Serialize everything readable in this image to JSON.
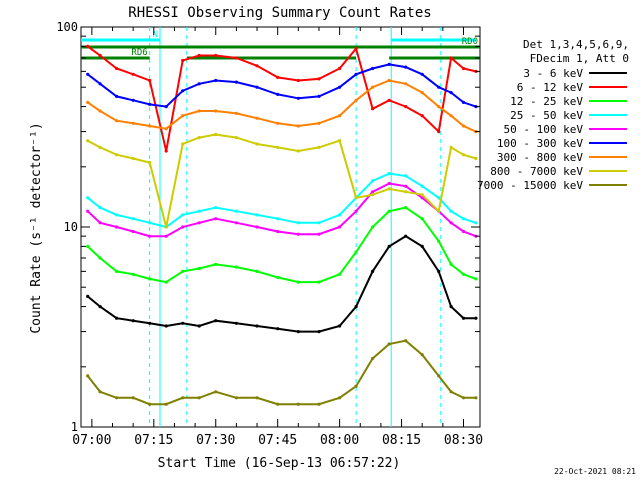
{
  "chart_data": {
    "type": "line",
    "title": "RHESSI Observing Summary Count Rates",
    "xlabel": "Start Time (16-Sep-13 06:57:22)",
    "ylabel": "Count Rate (s⁻¹ detector⁻¹)",
    "yscale": "log",
    "ylim": [
      1,
      100
    ],
    "xlim": [
      "06:57:22",
      "08:34:00"
    ],
    "x_ticks": [
      "07:00",
      "07:15",
      "07:30",
      "07:45",
      "08:00",
      "08:15",
      "08:30"
    ],
    "y_ticks": [
      "1",
      "10",
      "100"
    ],
    "legend_header": [
      "Det 1,3,4,5,6,9,",
      "FDecim 1, Att 0"
    ],
    "legend_position": "right",
    "footer_date": "22-Oct-2021 08:21",
    "flags": [
      {
        "label": "N",
        "color": "#00ffff",
        "segments": [
          [
            "06:57:22",
            "07:16:30"
          ],
          [
            "08:12:30",
            "08:33:00"
          ]
        ]
      },
      {
        "label": "RD0",
        "color": "#008000",
        "segments": [
          [
            "06:57:22",
            "08:34:00"
          ]
        ]
      },
      {
        "label": "RD6",
        "color": "#008000",
        "segments": [
          [
            "06:57:22",
            "07:14:00"
          ],
          [
            "07:23:00",
            "08:04:00"
          ],
          [
            "08:12:00",
            "08:34:00"
          ]
        ]
      }
    ],
    "night_boundaries": [
      "07:16:30",
      "08:12:30"
    ],
    "saa_boundaries": [
      "07:14:00",
      "07:23:00",
      "08:04:00",
      "08:24:30"
    ],
    "x": [
      "06:59",
      "07:02",
      "07:06",
      "07:10",
      "07:14",
      "07:18",
      "07:22",
      "07:26",
      "07:30",
      "07:35",
      "07:40",
      "07:45",
      "07:50",
      "07:55",
      "08:00",
      "08:04",
      "08:08",
      "08:12",
      "08:16",
      "08:20",
      "08:24",
      "08:27",
      "08:30",
      "08:33"
    ],
    "series": [
      {
        "name": "3 - 6 keV",
        "color": "#000000",
        "values": [
          4.5,
          4.0,
          3.5,
          3.4,
          3.3,
          3.2,
          3.3,
          3.2,
          3.4,
          3.3,
          3.2,
          3.1,
          3.0,
          3.0,
          3.2,
          4.0,
          6.0,
          8.0,
          9.0,
          8.0,
          6.0,
          4.0,
          3.5,
          3.5
        ]
      },
      {
        "name": "6 - 12 keV",
        "color": "#ff0000",
        "values": [
          80,
          72,
          62,
          58,
          54,
          24,
          68,
          72,
          72,
          70,
          64,
          56,
          54,
          55,
          62,
          78,
          39,
          43,
          40,
          36,
          30,
          70,
          62,
          60
        ]
      },
      {
        "name": "12 - 25 keV",
        "color": "#00ff00",
        "values": [
          8.0,
          7.0,
          6.0,
          5.8,
          5.5,
          5.3,
          6.0,
          6.2,
          6.5,
          6.3,
          6.0,
          5.6,
          5.3,
          5.3,
          5.8,
          7.5,
          10.0,
          12.0,
          12.5,
          11.0,
          8.5,
          6.5,
          5.8,
          5.5
        ]
      },
      {
        "name": "25 - 50 keV",
        "color": "#00ffff",
        "values": [
          14.0,
          12.5,
          11.5,
          11.0,
          10.5,
          10.0,
          11.5,
          12.0,
          12.5,
          12.0,
          11.5,
          11.0,
          10.5,
          10.5,
          11.5,
          14.0,
          17.0,
          18.5,
          18.0,
          16.0,
          14.0,
          12.0,
          11.0,
          10.5
        ]
      },
      {
        "name": "50 - 100 keV",
        "color": "#ff00ff",
        "values": [
          12.0,
          10.5,
          10.0,
          9.5,
          9.0,
          9.0,
          10.0,
          10.5,
          11.0,
          10.5,
          10.0,
          9.5,
          9.2,
          9.2,
          10.0,
          12.0,
          15.0,
          16.5,
          16.0,
          14.0,
          12.0,
          10.5,
          9.5,
          9.0
        ]
      },
      {
        "name": "100 - 300 keV",
        "color": "#0000ff",
        "values": [
          58,
          52,
          45,
          43,
          41,
          40,
          48,
          52,
          54,
          53,
          50,
          46,
          44,
          45,
          50,
          58,
          62,
          65,
          63,
          58,
          50,
          47,
          42,
          40
        ]
      },
      {
        "name": "300 - 800 keV",
        "color": "#ff8000",
        "values": [
          42,
          38,
          34,
          33,
          32,
          31,
          36,
          38,
          38,
          37,
          35,
          33,
          32,
          33,
          36,
          43,
          50,
          54,
          52,
          47,
          40,
          36,
          32,
          30
        ]
      },
      {
        "name": "800 - 7000 keV",
        "color": "#cccc00",
        "values": [
          27,
          25,
          23,
          22,
          21,
          10.0,
          26,
          28,
          29,
          28,
          26,
          25,
          24,
          25,
          27,
          14.0,
          14.5,
          15.5,
          15.0,
          14.5,
          12.0,
          25,
          23,
          22
        ]
      },
      {
        "name": "7000 - 15000 keV",
        "color": "#808000",
        "values": [
          1.8,
          1.5,
          1.4,
          1.4,
          1.3,
          1.3,
          1.4,
          1.4,
          1.5,
          1.4,
          1.4,
          1.3,
          1.3,
          1.3,
          1.4,
          1.6,
          2.2,
          2.6,
          2.7,
          2.3,
          1.8,
          1.5,
          1.4,
          1.4
        ]
      }
    ]
  }
}
